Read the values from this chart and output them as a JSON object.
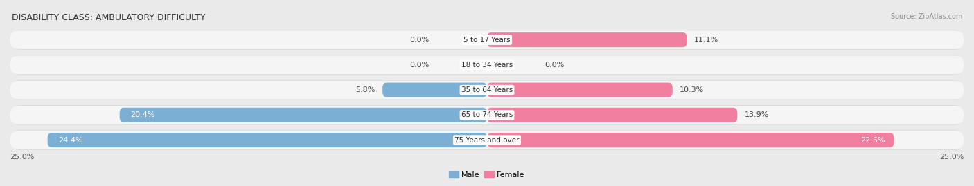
{
  "title": "DISABILITY CLASS: AMBULATORY DIFFICULTY",
  "source": "Source: ZipAtlas.com",
  "categories": [
    "5 to 17 Years",
    "18 to 34 Years",
    "35 to 64 Years",
    "65 to 74 Years",
    "75 Years and over"
  ],
  "male_values": [
    0.0,
    0.0,
    5.8,
    20.4,
    24.4
  ],
  "female_values": [
    11.1,
    0.0,
    10.3,
    13.9,
    22.6
  ],
  "male_color": "#7bafd4",
  "female_color": "#f07fa0",
  "female_color_light": "#f5afc0",
  "male_label": "Male",
  "female_label": "Female",
  "x_max": 25.0,
  "x_min": -25.0,
  "axis_label_left": "25.0%",
  "axis_label_right": "25.0%",
  "bg_color": "#eaeaea",
  "bar_bg_color": "#f5f5f5",
  "bar_bg_shadow": "#d8d8d8",
  "title_fontsize": 9,
  "label_fontsize": 8,
  "category_fontsize": 7.5,
  "tick_fontsize": 8,
  "source_fontsize": 7
}
